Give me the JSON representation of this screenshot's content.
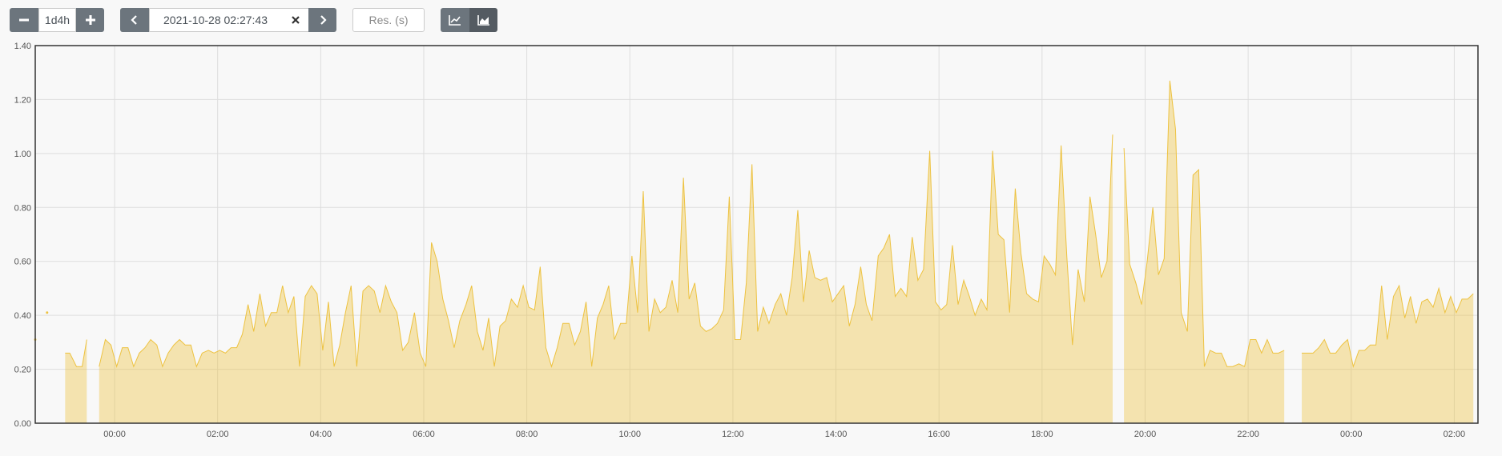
{
  "toolbar": {
    "range": "1d4h",
    "end_time": "2021-10-28 02:27:43",
    "resolution_placeholder": "Res. (s)"
  },
  "chart_data": {
    "type": "area",
    "x": [
      -1.54,
      -1.43,
      -1.31,
      -1.13,
      -0.96,
      -0.87,
      -0.74,
      -0.63,
      -0.54,
      -0.42,
      -0.3,
      -0.18,
      -0.07,
      0.04,
      0.15,
      0.26,
      0.37,
      0.48,
      0.59,
      0.7,
      0.82,
      0.93,
      1.04,
      1.15,
      1.26,
      1.37,
      1.48,
      1.59,
      1.7,
      1.82,
      1.93,
      2.04,
      2.15,
      2.26,
      2.37,
      2.48,
      2.59,
      2.7,
      2.82,
      2.93,
      3.04,
      3.15,
      3.26,
      3.37,
      3.48,
      3.59,
      3.7,
      3.82,
      3.93,
      4.04,
      4.15,
      4.26,
      4.37,
      4.48,
      4.59,
      4.7,
      4.82,
      4.93,
      5.04,
      5.15,
      5.26,
      5.37,
      5.48,
      5.59,
      5.7,
      5.82,
      5.93,
      6.04,
      6.15,
      6.26,
      6.37,
      6.48,
      6.59,
      6.7,
      6.82,
      6.93,
      7.04,
      7.15,
      7.26,
      7.37,
      7.48,
      7.59,
      7.7,
      7.82,
      7.93,
      8.04,
      8.15,
      8.26,
      8.37,
      8.48,
      8.59,
      8.7,
      8.82,
      8.93,
      9.04,
      9.15,
      9.26,
      9.37,
      9.48,
      9.59,
      9.7,
      9.82,
      9.93,
      10.04,
      10.15,
      10.26,
      10.37,
      10.48,
      10.59,
      10.7,
      10.82,
      10.93,
      11.04,
      11.15,
      11.26,
      11.37,
      11.48,
      11.59,
      11.7,
      11.82,
      11.93,
      12.04,
      12.15,
      12.26,
      12.37,
      12.48,
      12.59,
      12.7,
      12.82,
      12.93,
      13.04,
      13.15,
      13.26,
      13.37,
      13.48,
      13.59,
      13.7,
      13.82,
      13.93,
      14.04,
      14.15,
      14.26,
      14.37,
      14.48,
      14.59,
      14.7,
      14.82,
      14.93,
      15.04,
      15.15,
      15.26,
      15.37,
      15.48,
      15.59,
      15.7,
      15.82,
      15.93,
      16.04,
      16.15,
      16.26,
      16.37,
      16.48,
      16.59,
      16.7,
      16.82,
      16.93,
      17.04,
      17.15,
      17.26,
      17.37,
      17.48,
      17.59,
      17.7,
      17.82,
      17.93,
      18.04,
      18.15,
      18.26,
      18.37,
      18.48,
      18.59,
      18.7,
      18.82,
      18.93,
      19.04,
      19.15,
      19.26,
      19.37,
      19.48,
      19.59,
      19.7,
      19.82,
      19.93,
      20.04,
      20.15,
      20.26,
      20.37,
      20.48,
      20.59,
      20.7,
      20.82,
      20.93,
      21.04,
      21.15,
      21.26,
      21.37,
      21.48,
      21.59,
      21.7,
      21.82,
      21.93,
      22.04,
      22.15,
      22.26,
      22.37,
      22.48,
      22.59,
      22.7,
      22.82,
      23.04,
      23.15,
      23.26,
      23.37,
      23.48,
      23.59,
      23.7,
      23.82,
      23.93,
      24.04,
      24.15,
      24.26,
      24.37,
      24.48,
      24.59,
      24.7,
      24.82,
      24.93,
      25.04,
      25.15,
      25.26,
      25.37,
      25.48,
      25.59,
      25.7,
      25.82,
      25.93,
      26.04,
      26.15,
      26.26,
      26.37
    ],
    "series": [
      {
        "color": "#edc240",
        "values": [
          0.31,
          null,
          0.41,
          null,
          0.26,
          0.26,
          0.21,
          0.21,
          0.31,
          null,
          0.21,
          0.31,
          0.29,
          0.21,
          0.28,
          0.28,
          0.21,
          0.26,
          0.28,
          0.31,
          0.29,
          0.21,
          0.26,
          0.29,
          0.31,
          0.29,
          0.29,
          0.21,
          0.26,
          0.27,
          0.26,
          0.27,
          0.26,
          0.28,
          0.28,
          0.33,
          0.44,
          0.34,
          0.48,
          0.36,
          0.41,
          0.41,
          0.51,
          0.41,
          0.47,
          0.21,
          0.47,
          0.51,
          0.48,
          0.27,
          0.45,
          0.21,
          0.29,
          0.41,
          0.51,
          0.21,
          0.49,
          0.51,
          0.49,
          0.41,
          0.51,
          0.45,
          0.41,
          0.27,
          0.3,
          0.41,
          0.26,
          0.21,
          0.67,
          0.6,
          0.46,
          0.38,
          0.28,
          0.38,
          0.44,
          0.51,
          0.34,
          0.27,
          0.39,
          0.21,
          0.36,
          0.38,
          0.46,
          0.43,
          0.51,
          0.43,
          0.42,
          0.58,
          0.28,
          0.21,
          0.28,
          0.37,
          0.37,
          0.29,
          0.34,
          0.45,
          0.21,
          0.39,
          0.44,
          0.51,
          0.31,
          0.37,
          0.37,
          0.62,
          0.41,
          0.86,
          0.34,
          0.46,
          0.41,
          0.43,
          0.53,
          0.41,
          0.91,
          0.46,
          0.52,
          0.36,
          0.34,
          0.35,
          0.37,
          0.42,
          0.84,
          0.31,
          0.31,
          0.52,
          0.96,
          0.34,
          0.43,
          0.37,
          0.44,
          0.48,
          0.4,
          0.54,
          0.79,
          0.45,
          0.64,
          0.54,
          0.53,
          0.54,
          0.45,
          0.48,
          0.51,
          0.36,
          0.44,
          0.58,
          0.44,
          0.38,
          0.62,
          0.65,
          0.7,
          0.47,
          0.5,
          0.47,
          0.69,
          0.53,
          0.57,
          1.01,
          0.45,
          0.42,
          0.44,
          0.66,
          0.44,
          0.53,
          0.47,
          0.4,
          0.46,
          0.42,
          1.01,
          0.7,
          0.68,
          0.41,
          0.87,
          0.63,
          0.48,
          0.46,
          0.45,
          0.62,
          0.59,
          0.55,
          1.03,
          0.62,
          0.29,
          0.57,
          0.45,
          0.84,
          0.7,
          0.54,
          0.6,
          1.07,
          null,
          1.02,
          0.59,
          0.52,
          0.44,
          0.6,
          0.8,
          0.55,
          0.61,
          1.27,
          1.09,
          0.41,
          0.34,
          0.92,
          0.94,
          0.21,
          0.27,
          0.26,
          0.26,
          0.21,
          0.21,
          0.22,
          0.21,
          0.31,
          0.31,
          0.26,
          0.31,
          0.26,
          0.26,
          0.27,
          null,
          0.26,
          0.26,
          0.26,
          0.28,
          0.31,
          0.26,
          0.26,
          0.29,
          0.31,
          0.21,
          0.27,
          0.27,
          0.29,
          0.29,
          0.51,
          0.31,
          0.47,
          0.51,
          0.39,
          0.47,
          0.37,
          0.45,
          0.46,
          0.43,
          0.5,
          0.41,
          0.47,
          0.41,
          0.46,
          0.46,
          0.48
        ]
      }
    ],
    "xlim": [
      -1.54,
      26.46
    ],
    "xticks": [
      {
        "value": 0,
        "label": "00:00"
      },
      {
        "value": 2,
        "label": "02:00"
      },
      {
        "value": 4,
        "label": "04:00"
      },
      {
        "value": 6,
        "label": "06:00"
      },
      {
        "value": 8,
        "label": "08:00"
      },
      {
        "value": 10,
        "label": "10:00"
      },
      {
        "value": 12,
        "label": "12:00"
      },
      {
        "value": 14,
        "label": "14:00"
      },
      {
        "value": 16,
        "label": "16:00"
      },
      {
        "value": 18,
        "label": "18:00"
      },
      {
        "value": 20,
        "label": "20:00"
      },
      {
        "value": 22,
        "label": "22:00"
      },
      {
        "value": 24,
        "label": "00:00"
      },
      {
        "value": 26,
        "label": "02:00"
      }
    ],
    "ylim": [
      0,
      1.4
    ],
    "yticks": [
      {
        "value": 0,
        "label": "0.00"
      },
      {
        "value": 0.2,
        "label": "0.20"
      },
      {
        "value": 0.4,
        "label": "0.40"
      },
      {
        "value": 0.6,
        "label": "0.60"
      },
      {
        "value": 0.8,
        "label": "0.80"
      },
      {
        "value": 1.0,
        "label": "1.00"
      },
      {
        "value": 1.2,
        "label": "1.20"
      },
      {
        "value": 1.4,
        "label": "1.40"
      }
    ],
    "grid": true
  }
}
